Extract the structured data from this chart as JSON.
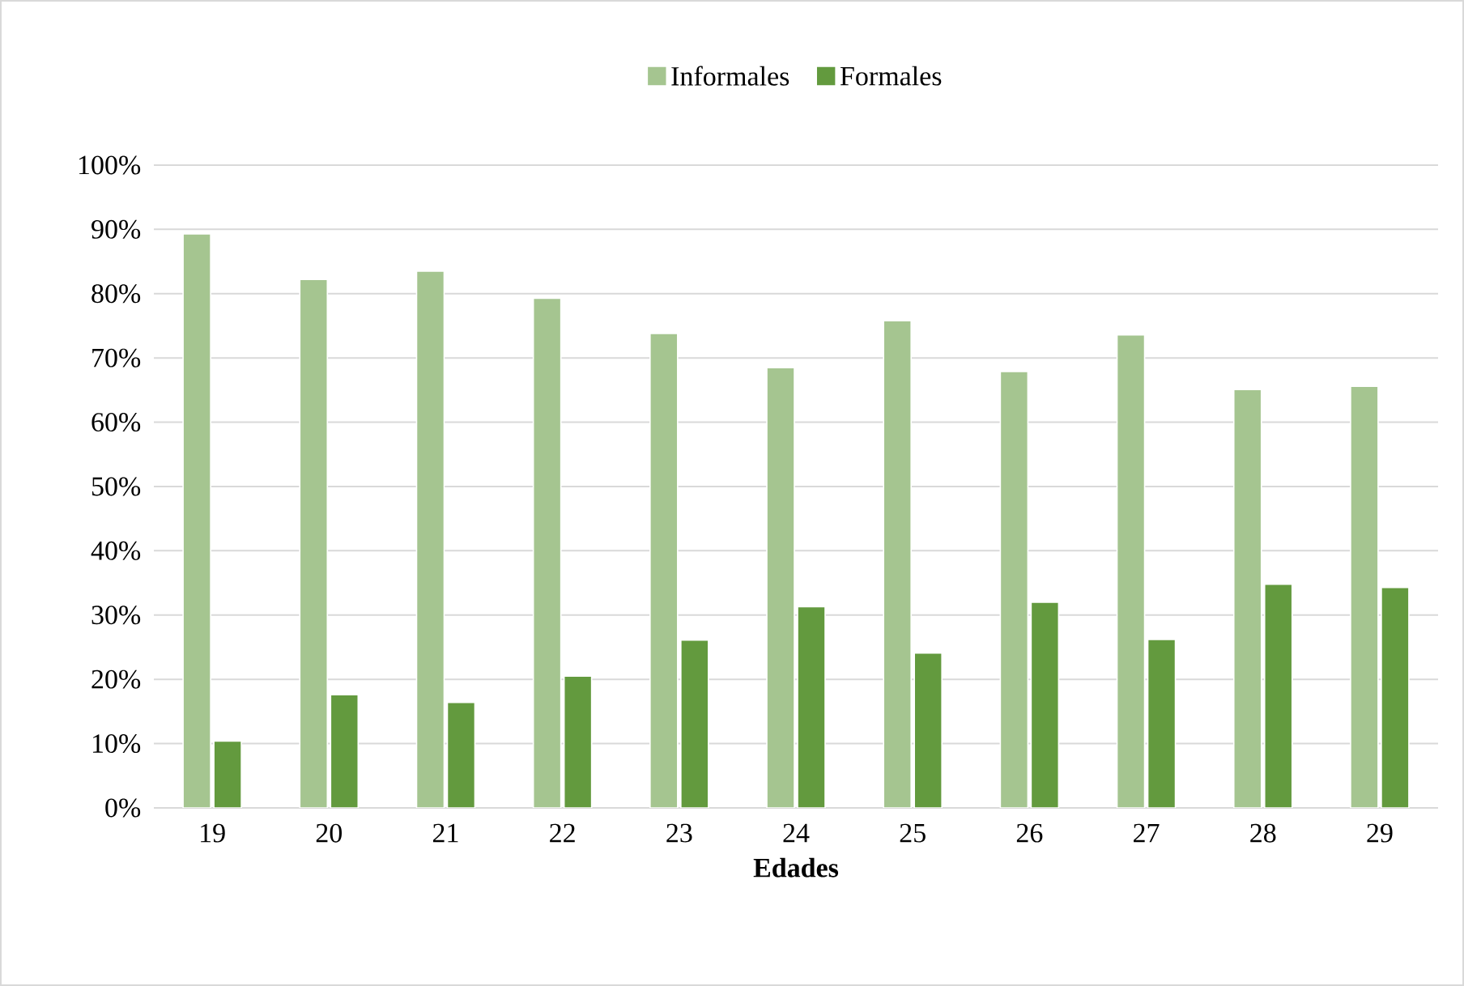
{
  "chart_data": {
    "type": "bar",
    "xlabel": "Edades",
    "categories": [
      "19",
      "20",
      "21",
      "22",
      "23",
      "24",
      "25",
      "26",
      "27",
      "28",
      "29"
    ],
    "series": [
      {
        "name": "Informales",
        "color": "#a5c590",
        "values": [
          89.3,
          82.2,
          83.5,
          79.3,
          73.8,
          68.5,
          75.8,
          67.9,
          73.6,
          65.1,
          65.6
        ]
      },
      {
        "name": "Formales",
        "color": "#639a3e",
        "values": [
          10.4,
          17.6,
          16.4,
          20.5,
          26.1,
          31.3,
          24.1,
          32.0,
          26.2,
          34.8,
          34.3
        ]
      }
    ],
    "ylim": [
      0,
      100
    ],
    "yticks": [
      {
        "value": 0,
        "label": "0%"
      },
      {
        "value": 10,
        "label": "10%"
      },
      {
        "value": 20,
        "label": "20%"
      },
      {
        "value": 30,
        "label": "30%"
      },
      {
        "value": 40,
        "label": "40%"
      },
      {
        "value": 50,
        "label": "50%"
      },
      {
        "value": 60,
        "label": "60%"
      },
      {
        "value": 70,
        "label": "70%"
      },
      {
        "value": 80,
        "label": "80%"
      },
      {
        "value": 90,
        "label": "90%"
      },
      {
        "value": 100,
        "label": "100%"
      }
    ],
    "grid": "y",
    "legend": "top"
  }
}
